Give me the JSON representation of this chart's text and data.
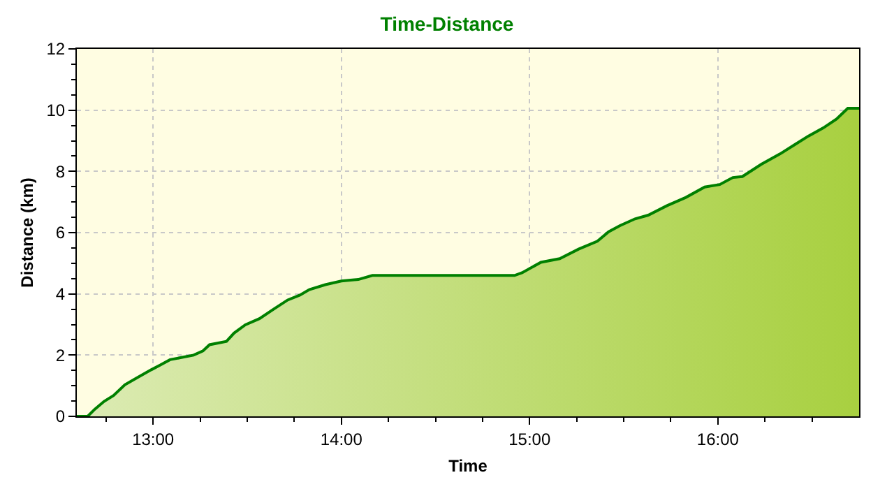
{
  "chart_data": {
    "type": "area",
    "title": "Time-Distance",
    "xlabel": "Time",
    "ylabel": "Distance (km)",
    "x": [
      12.595,
      12.6525,
      12.69,
      12.74,
      12.79,
      12.85,
      12.915,
      12.99,
      13.04,
      13.09,
      13.15,
      13.215,
      13.265,
      13.3,
      13.39,
      13.43,
      13.49,
      13.565,
      13.64,
      13.715,
      13.78,
      13.83,
      13.915,
      14.0,
      14.09,
      14.165,
      14.92,
      14.96,
      15.06,
      15.16,
      15.26,
      15.36,
      15.42,
      15.48,
      15.56,
      15.63,
      15.73,
      15.83,
      15.93,
      16.01,
      16.08,
      16.13,
      16.23,
      16.33,
      16.41,
      16.48,
      16.56,
      16.63,
      16.69,
      16.75
    ],
    "series": [
      {
        "color": "#008000",
        "values": [
          0,
          0,
          0.23,
          0.49,
          0.68,
          1.03,
          1.26,
          1.52,
          1.68,
          1.85,
          1.92,
          2.0,
          2.14,
          2.34,
          2.45,
          2.72,
          2.99,
          3.19,
          3.5,
          3.8,
          3.96,
          4.14,
          4.3,
          4.42,
          4.47,
          4.6,
          4.6,
          4.69,
          5.03,
          5.15,
          5.46,
          5.72,
          6.03,
          6.23,
          6.45,
          6.57,
          6.88,
          7.15,
          7.49,
          7.57,
          7.8,
          7.83,
          8.23,
          8.57,
          8.88,
          9.15,
          9.42,
          9.71,
          10.06,
          10.06
        ]
      }
    ],
    "xlim": [
      12.595,
      16.75
    ],
    "xticks": [
      {
        "value": 12.75,
        "label": null
      },
      {
        "value": 13,
        "label": "13:00"
      },
      {
        "value": 13.25,
        "label": null
      },
      {
        "value": 13.5,
        "label": null
      },
      {
        "value": 13.75,
        "label": null
      },
      {
        "value": 14,
        "label": "14:00"
      },
      {
        "value": 14.25,
        "label": null
      },
      {
        "value": 14.5,
        "label": null
      },
      {
        "value": 14.75,
        "label": null
      },
      {
        "value": 15,
        "label": "15:00"
      },
      {
        "value": 15.25,
        "label": null
      },
      {
        "value": 15.5,
        "label": null
      },
      {
        "value": 15.75,
        "label": null
      },
      {
        "value": 16,
        "label": "16:00"
      },
      {
        "value": 16.25,
        "label": null
      },
      {
        "value": 16.5,
        "label": null
      }
    ],
    "ylim": [
      0,
      12
    ],
    "yticks": [
      0,
      {
        "value": 0.5,
        "label": null
      },
      {
        "value": 1,
        "label": null
      },
      {
        "value": 1.5,
        "label": null
      },
      2,
      {
        "value": 2.5,
        "label": null
      },
      {
        "value": 3,
        "label": null
      },
      {
        "value": 3.5,
        "label": null
      },
      4,
      {
        "value": 4.5,
        "label": null
      },
      {
        "value": 5,
        "label": null
      },
      {
        "value": 5.5,
        "label": null
      },
      6,
      {
        "value": 6.5,
        "label": null
      },
      {
        "value": 7,
        "label": null
      },
      {
        "value": 7.5,
        "label": null
      },
      8,
      {
        "value": 8.5,
        "label": null
      },
      {
        "value": 9,
        "label": null
      },
      {
        "value": 9.5,
        "label": null
      },
      10,
      {
        "value": 10.5,
        "label": null
      },
      {
        "value": 11,
        "label": null
      },
      {
        "value": 11.5,
        "label": null
      },
      12
    ],
    "grid": true
  }
}
